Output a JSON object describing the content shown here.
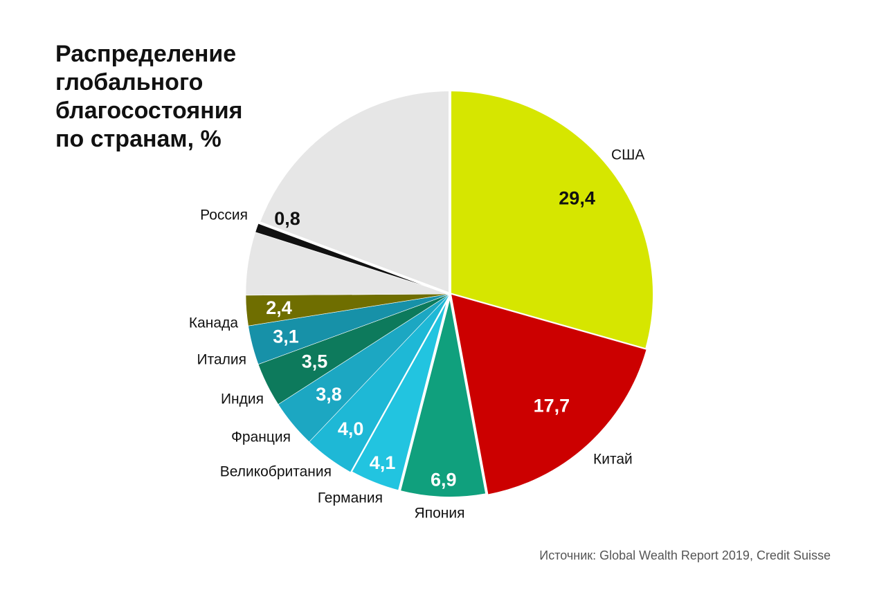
{
  "title": "Распределение\nглобального\nблагосостояния\nпо странам, %",
  "source": "Источник: Global Wealth Report 2019, Credit Suisse",
  "chart_data": {
    "type": "pie",
    "title": "Распределение глобального благосостояния по странам, %",
    "start": "12 o'clock",
    "direction": "clockwise",
    "slices": [
      {
        "label": "США",
        "value": 29.4,
        "value_text": "29,4",
        "color": "#d6e600",
        "value_color": "#111111"
      },
      {
        "label": "Китай",
        "value": 17.7,
        "value_text": "17,7",
        "color": "#cc0000",
        "value_color": "#ffffff"
      },
      {
        "label": "Япония",
        "value": 6.9,
        "value_text": "6,9",
        "color": "#10a07d",
        "value_color": "#ffffff"
      },
      {
        "label": "Германия",
        "value": 4.1,
        "value_text": "4,1",
        "color": "#22c4e0",
        "value_color": "#ffffff"
      },
      {
        "label": "Великобритания",
        "value": 4.0,
        "value_text": "4,0",
        "color": "#1eb8d6",
        "value_color": "#ffffff"
      },
      {
        "label": "Франция",
        "value": 3.8,
        "value_text": "3,8",
        "color": "#1ca7c2",
        "value_color": "#ffffff"
      },
      {
        "label": "Индия",
        "value": 3.5,
        "value_text": "3,5",
        "color": "#0d7a5c",
        "value_color": "#ffffff"
      },
      {
        "label": "Италия",
        "value": 3.1,
        "value_text": "3,1",
        "color": "#1791a8",
        "value_color": "#ffffff"
      },
      {
        "label": "Канада",
        "value": 2.4,
        "value_text": "2,4",
        "color": "#6f6e00",
        "value_color": "#ffffff"
      },
      {
        "label": "",
        "value": 5.0,
        "value_text": "",
        "color": "#e6e6e6",
        "value_color": ""
      },
      {
        "label": "Россия",
        "value": 0.8,
        "value_text": "0,8",
        "color": "#111111",
        "value_color": "#111111"
      },
      {
        "label": "",
        "value": 19.3,
        "value_text": "",
        "color": "#e6e6e6",
        "value_color": ""
      }
    ]
  }
}
